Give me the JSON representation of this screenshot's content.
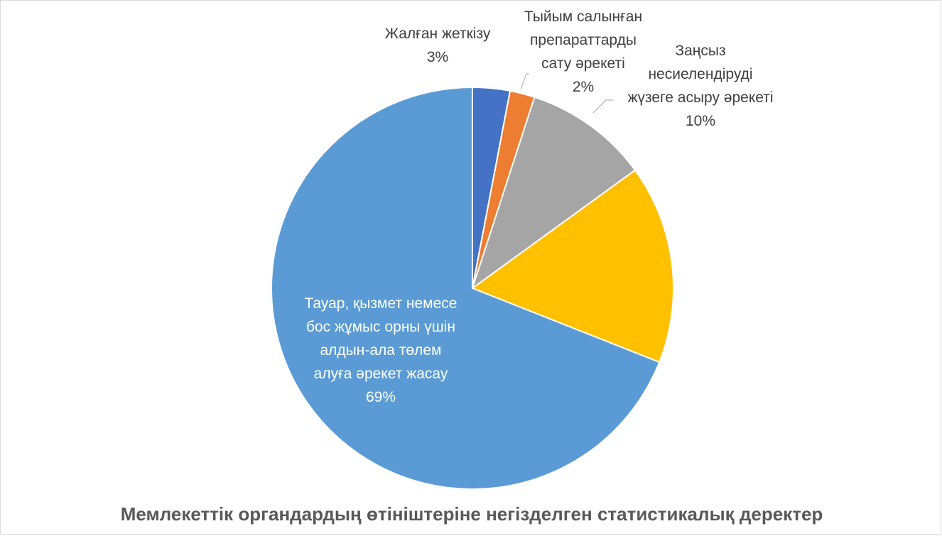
{
  "chart_data": {
    "type": "pie",
    "title": "Мемлекеттік органдардың өтініштеріне негізделген статистикалық деректер",
    "slices": [
      {
        "name": "Жалған жеткізу",
        "value": 3,
        "label": "3%",
        "color": "#4472c4",
        "label_lines": [
          "Жалған жеткізу",
          "3%"
        ]
      },
      {
        "name": "Тыйым салынған препараттарды сату әрекеті",
        "value": 2,
        "label": "2%",
        "color": "#ed7d31",
        "label_lines": [
          "Тыйым салынған",
          "препараттарды",
          "сату әрекеті",
          "2%"
        ]
      },
      {
        "name": "Заңсыз несиелендіруді жүзеге асыру әрекеті",
        "value": 10,
        "label": "10%",
        "color": "#a5a5a5",
        "label_lines": [
          "Заңсыз",
          "несиелендіруді",
          "жүзеге асыру әрекеті",
          "10%"
        ]
      },
      {
        "name": "",
        "value": 16,
        "label": "",
        "color": "#ffc000",
        "label_lines": []
      },
      {
        "name": "Тауар, қызмет немесе бос жұмыс орны үшін алдын-ала төлем алуға әрекет жасау",
        "value": 69,
        "label": "69%",
        "color": "#5b9bd5",
        "label_lines": [
          "Тауар, қызмет немесе",
          "бос жұмыс орны үшін",
          "алдын-ала төлем",
          "алуға әрекет жасау",
          "69%"
        ]
      }
    ],
    "legend": "none"
  }
}
